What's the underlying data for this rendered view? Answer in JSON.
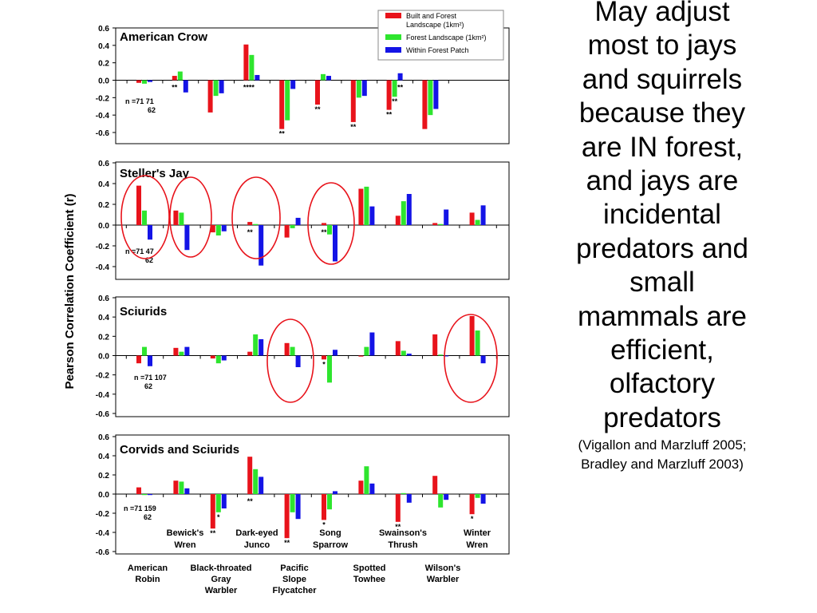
{
  "figure": {
    "ylabel": "Pearson Correlation Coefficient (r)",
    "legend": {
      "placement": "top-right",
      "entries": [
        {
          "name": "Built and Forest",
          "name_line2": "Landscape (1km²)",
          "color": "#e8131b"
        },
        {
          "name": "Forest Landscape (1km²)",
          "color": "#2ee52e"
        },
        {
          "name": "Within Forest Patch",
          "color": "#1414e6"
        }
      ]
    },
    "species_row1": [
      "Bewick's Wren",
      "Dark-eyed Junco",
      "Song Sparrow",
      "Swainson's Thrush",
      "Winter Wren"
    ],
    "species_row2": [
      "American Robin",
      "Black-throated Gray Warbler",
      "Pacific Slope Flycatcher",
      "Spotted Towhee",
      "Wilson's Warbler"
    ]
  },
  "chart_data": [
    {
      "type": "bar",
      "title": "American Crow",
      "ylim": [
        -0.6,
        0.6
      ],
      "yticks": [
        "0.6",
        "0.4",
        "0.2",
        "0.0",
        "-0.2",
        "-0.4",
        "-0.6"
      ],
      "n_text": {
        "line1": "n =71   71",
        "line2": "62"
      },
      "series": [
        {
          "name": "Built and Forest Landscape (1km²)",
          "values": [
            -0.03,
            0.05,
            -0.37,
            0.41,
            -0.56,
            -0.28,
            -0.48,
            -0.34,
            -0.56
          ]
        },
        {
          "name": "Forest Landscape (1km²)",
          "values": [
            -0.04,
            0.1,
            -0.18,
            0.29,
            -0.46,
            0.07,
            -0.2,
            -0.19,
            -0.4
          ]
        },
        {
          "name": "Within Forest Patch",
          "values": [
            -0.02,
            -0.14,
            -0.15,
            0.06,
            -0.1,
            0.05,
            -0.18,
            0.08,
            -0.33
          ]
        }
      ],
      "significance": [
        "",
        "**",
        "",
        "**|**",
        "**",
        "**",
        "**",
        "**|**|**",
        ""
      ]
    },
    {
      "type": "bar",
      "title": "Steller's Jay",
      "ylim": [
        -0.4,
        0.6
      ],
      "yticks": [
        "0.6",
        "0.4",
        "0.2",
        "0.0",
        "-0.2",
        "-0.4"
      ],
      "n_text": {
        "line1": "n =71   47",
        "line2": "62"
      },
      "series": [
        {
          "name": "Built and Forest Landscape (1km²)",
          "values": [
            0.38,
            0.14,
            -0.07,
            0.03,
            -0.12,
            0.02,
            0.35,
            0.09,
            0.02,
            0.12
          ]
        },
        {
          "name": "Forest Landscape (1km²)",
          "values": [
            0.14,
            0.12,
            -0.1,
            0.01,
            -0.03,
            -0.09,
            0.37,
            0.23,
            0.01,
            0.05
          ]
        },
        {
          "name": "Within Forest Patch",
          "values": [
            -0.14,
            -0.24,
            -0.06,
            -0.39,
            0.07,
            -0.35,
            0.18,
            0.3,
            0.15,
            0.19
          ]
        }
      ],
      "significance": [
        "",
        "",
        "",
        "**",
        "",
        "**",
        "",
        "",
        "",
        ""
      ]
    },
    {
      "type": "bar",
      "title": "Sciurids",
      "ylim": [
        -0.6,
        0.6
      ],
      "yticks": [
        "0.6",
        "0.4",
        "0.2",
        "0.0",
        "-0.2",
        "-0.4",
        "-0.6"
      ],
      "n_text": {
        "line1": "n =71   107",
        "line2": "62"
      },
      "series": [
        {
          "name": "Built and Forest Landscape (1km²)",
          "values": [
            -0.08,
            0.08,
            -0.03,
            0.04,
            0.13,
            -0.04,
            -0.01,
            0.15,
            0.22,
            0.41
          ]
        },
        {
          "name": "Forest Landscape (1km²)",
          "values": [
            0.09,
            0.04,
            -0.08,
            0.22,
            0.09,
            -0.28,
            0.09,
            0.05,
            0.01,
            0.26
          ]
        },
        {
          "name": "Within Forest Patch",
          "values": [
            -0.11,
            0.09,
            -0.05,
            0.17,
            -0.12,
            0.06,
            0.24,
            0.02,
            0.0,
            -0.08
          ]
        }
      ],
      "significance": [
        "",
        "",
        "",
        "",
        "",
        "*",
        "",
        "",
        "",
        ""
      ]
    },
    {
      "type": "bar",
      "title": "Corvids and Sciurids",
      "ylim": [
        -0.6,
        0.6
      ],
      "yticks": [
        "0.6",
        "0.4",
        "0.2",
        "0.0",
        "-0.2",
        "-0.4",
        "-0.6"
      ],
      "n_text": {
        "line1": "n =71   159",
        "line2": "62"
      },
      "series": [
        {
          "name": "Built and Forest Landscape (1km²)",
          "values": [
            0.07,
            0.14,
            -0.36,
            0.39,
            -0.46,
            -0.27,
            0.14,
            -0.29,
            0.19,
            -0.21
          ]
        },
        {
          "name": "Forest Landscape (1km²)",
          "values": [
            -0.01,
            0.13,
            -0.19,
            0.26,
            -0.19,
            -0.16,
            0.29,
            0.01,
            -0.14,
            -0.04
          ]
        },
        {
          "name": "Within Forest Patch",
          "values": [
            -0.01,
            0.06,
            -0.15,
            0.18,
            -0.26,
            0.03,
            0.11,
            -0.09,
            -0.06,
            -0.1
          ]
        }
      ],
      "significance": [
        "",
        "",
        "**|*",
        "**",
        "**",
        "*",
        "",
        "**",
        "",
        "*"
      ]
    }
  ],
  "slide_text": {
    "main": [
      "May adjust",
      "most to jays",
      "and squirrels",
      "because they",
      "are IN forest,",
      "and jays are",
      "incidental",
      "predators and",
      "small",
      "mammals are",
      "efficient,",
      "olfactory",
      "predators"
    ],
    "citation": [
      "(Vigallon and Marzluff 2005;",
      "Bradley and Marzluff 2003)"
    ]
  },
  "colors": {
    "circle": "#e8131b"
  }
}
